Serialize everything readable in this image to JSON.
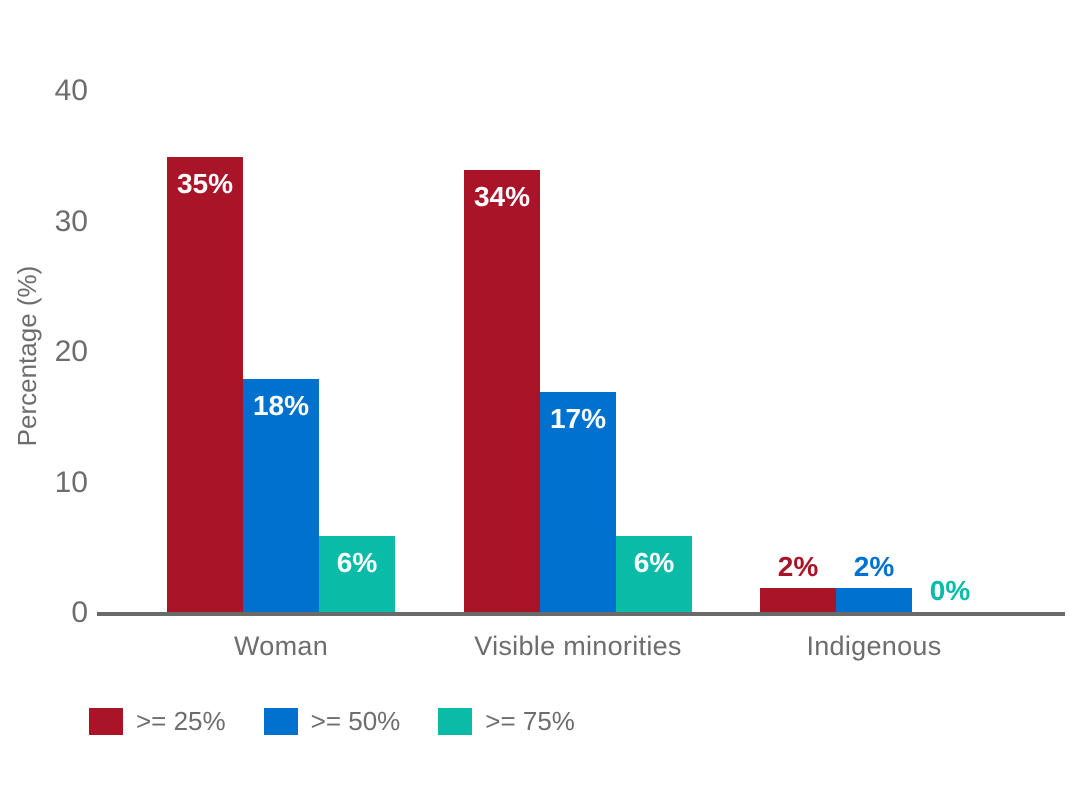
{
  "chart_data": {
    "type": "bar",
    "title": "",
    "categories": [
      "Woman",
      "Visible minorities",
      "Indigenous"
    ],
    "series": [
      {
        "name": ">= 25%",
        "color": "#AA1428",
        "values": [
          35,
          34,
          2
        ],
        "labels": [
          "35%",
          "34%",
          "2%"
        ]
      },
      {
        "name": ">= 50%",
        "color": "#0071CE",
        "values": [
          18,
          17,
          2
        ],
        "labels": [
          "18%",
          "17%",
          "2%"
        ]
      },
      {
        "name": ">= 75%",
        "color": "#0ABBA8",
        "values": [
          6,
          6,
          0
        ],
        "labels": [
          "6%",
          "6%",
          "0%"
        ]
      }
    ],
    "ylabel": "Percentage (%)",
    "yticks": [
      0,
      10,
      20,
      30,
      40
    ],
    "ylim": [
      0,
      40
    ],
    "grid": false,
    "legend_position": "bottom-left",
    "axis_text_color": "#6D6D6D",
    "axis_line_color": "#6A6A6A",
    "background": "#FFFFFF"
  }
}
